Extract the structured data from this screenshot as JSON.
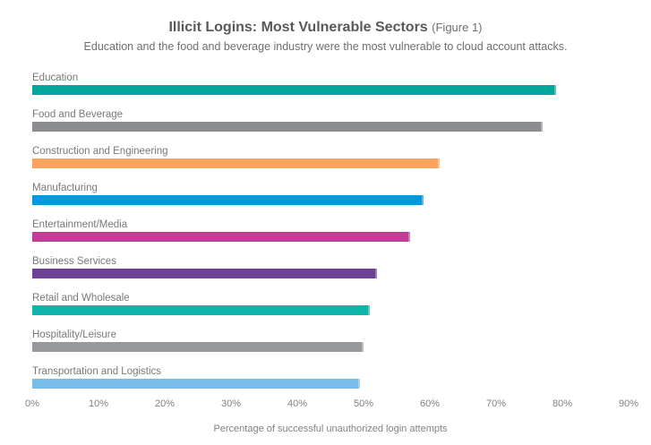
{
  "title": {
    "main": "Illicit Logins: Most Vulnerable Sectors",
    "suffix": "(Figure 1)"
  },
  "subtitle": "Education and the food and beverage industry were the most vulnerable to cloud account attacks.",
  "chart_data": {
    "type": "bar",
    "orientation": "horizontal",
    "title": "Illicit Logins: Most Vulnerable Sectors (Figure 1)",
    "subtitle": "Education and the food and beverage industry were the most vulnerable to cloud account attacks.",
    "categories": [
      "Education",
      "Food and Beverage",
      "Construction and Engineering",
      "Manufacturing",
      "Entertainment/Media",
      "Business Services",
      "Retail and Wholesale",
      "Hospitality/Leisure",
      "Transportation and Logistics"
    ],
    "values": [
      79,
      77,
      61.5,
      59,
      57,
      52,
      51,
      50,
      49.5
    ],
    "unit": "%",
    "colors": [
      "#00a79d",
      "#8b8d90",
      "#fba35d",
      "#0099dc",
      "#c23d96",
      "#6e4095",
      "#0fb5a8",
      "#97999d",
      "#77bde8"
    ],
    "xlabel": "Percentage of successful unauthorized login attempts",
    "ylabel": "",
    "xlim": [
      0,
      90
    ],
    "x_ticks": [
      "0%",
      "10%",
      "20%",
      "30%",
      "40%",
      "50%",
      "60%",
      "70%",
      "80%",
      "90%"
    ],
    "x_tick_values": [
      0,
      10,
      20,
      30,
      40,
      50,
      60,
      70,
      80,
      90
    ],
    "grid": false,
    "legend": false,
    "bar_labels_position": "above"
  },
  "colors": {
    "title_text": "#58595b",
    "subtitle_text": "#6d6e71",
    "category_label_text": "#77787b",
    "axis_text": "#808285",
    "background": "#ffffff"
  }
}
